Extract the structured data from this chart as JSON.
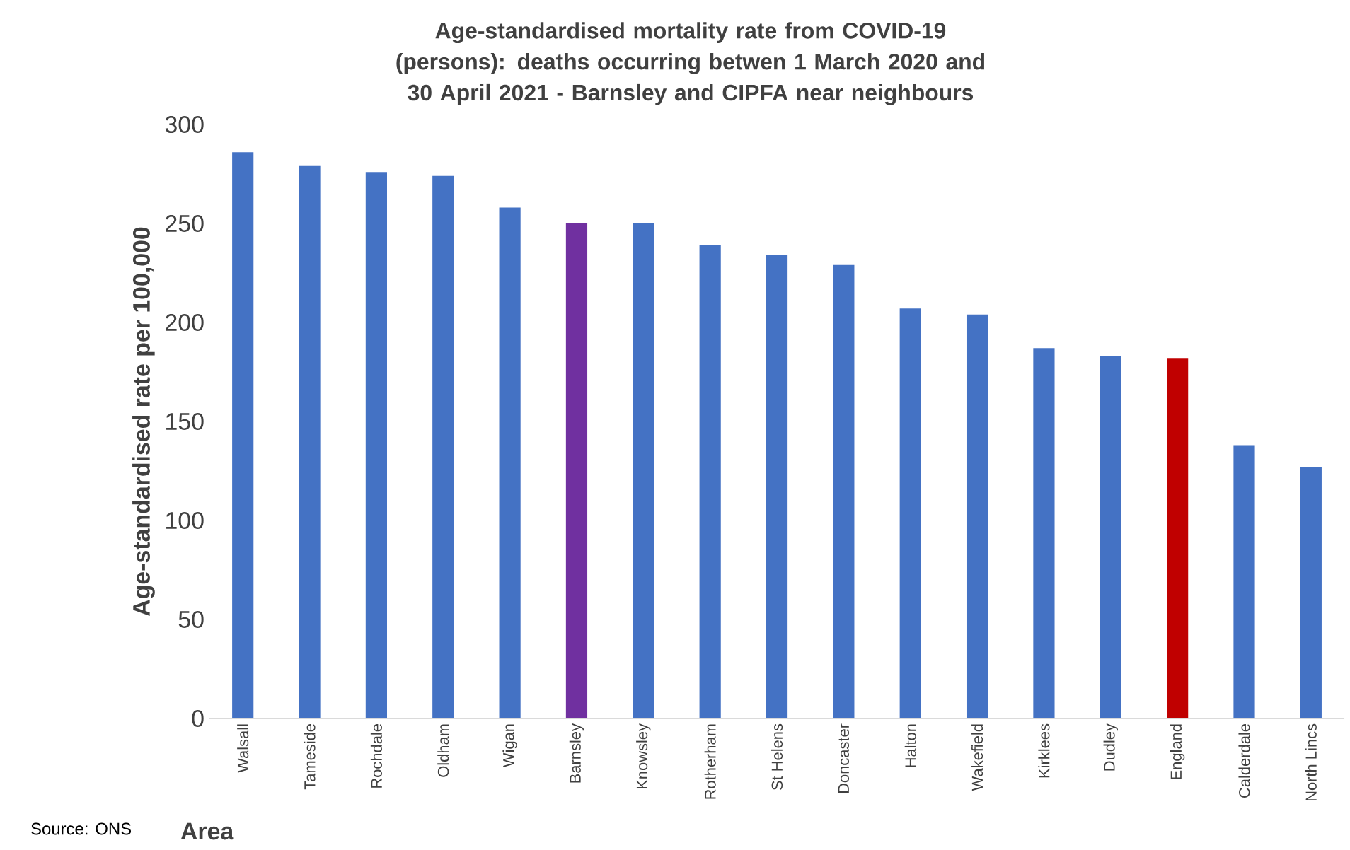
{
  "chart_data": {
    "type": "bar",
    "title": "Age-standardised mortality rate from COVID-19 (persons): deaths occurring betwen 1 March 2020 and 30 April 2021 - Barnsley and CIPFA near neighbours",
    "xlabel": "Area",
    "ylabel": "Age-standardised rate per 100,000",
    "annotations": [
      "Source: ONS"
    ],
    "categories": [
      "Walsall",
      "Tameside",
      "Rochdale",
      "Oldham",
      "Wigan",
      "Barnsley",
      "Knowsley",
      "Rotherham",
      "St Helens",
      "Doncaster",
      "Halton",
      "Wakefield",
      "Kirklees",
      "Dudley",
      "England",
      "Calderdale",
      "North Lincs"
    ],
    "values": [
      286,
      279,
      276,
      274,
      258,
      250,
      250,
      239,
      234,
      229,
      207,
      204,
      187,
      183,
      182,
      138,
      127
    ],
    "colors": [
      "#4472c4",
      "#4472c4",
      "#4472c4",
      "#4472c4",
      "#4472c4",
      "#7030a0",
      "#4472c4",
      "#4472c4",
      "#4472c4",
      "#4472c4",
      "#4472c4",
      "#4472c4",
      "#4472c4",
      "#4472c4",
      "#c00000",
      "#4472c4",
      "#4472c4"
    ],
    "ylim": [
      0,
      300
    ],
    "yticks": [
      0,
      50,
      100,
      150,
      200,
      250,
      300
    ]
  }
}
